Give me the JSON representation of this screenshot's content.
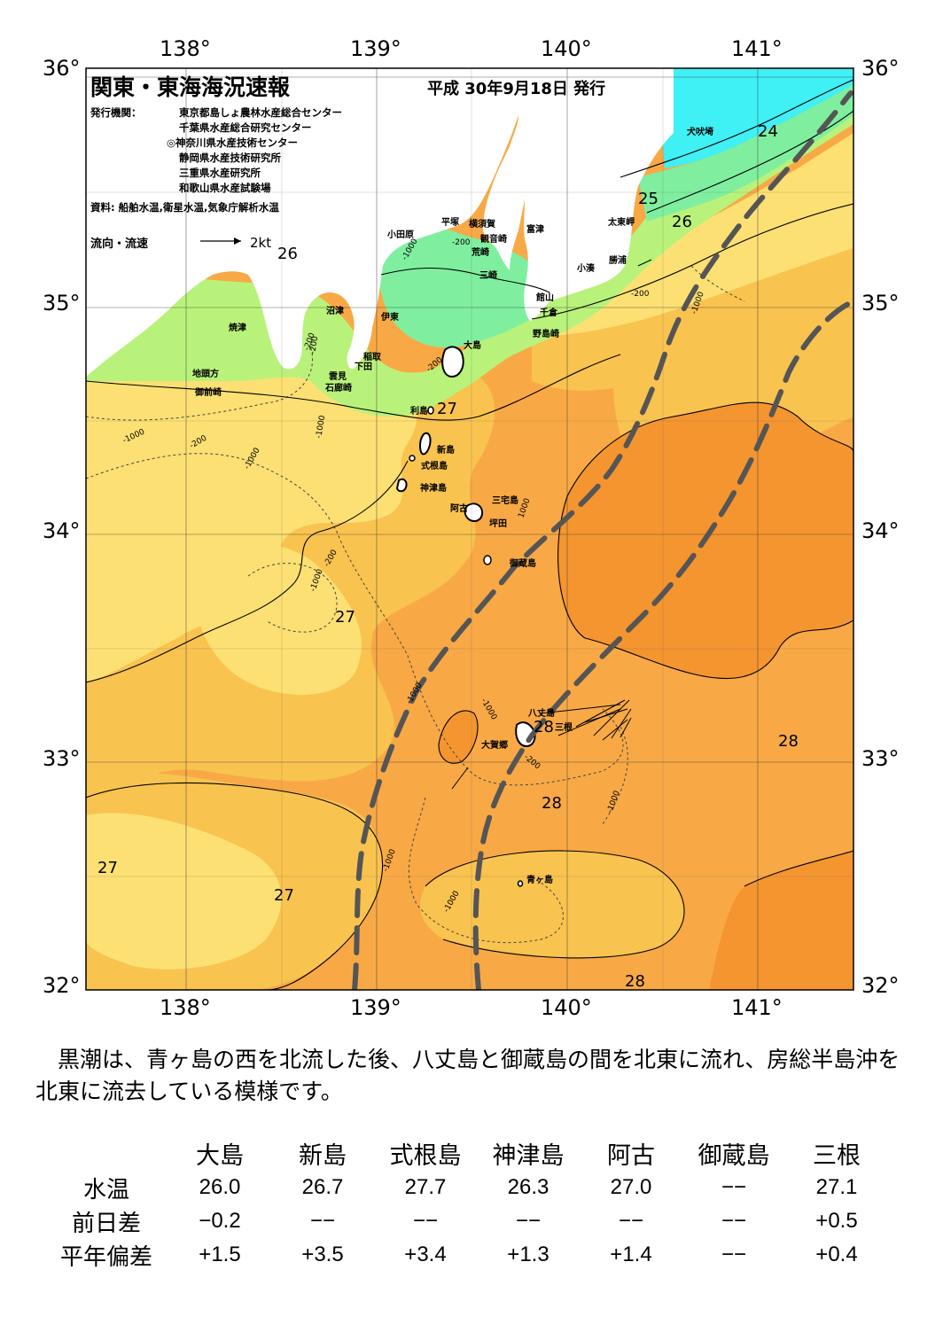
{
  "title": "関東・東海海況速報",
  "issue_date": "平成 30年9月18日 発行",
  "issuers_label": "発行機関：",
  "issuers": [
    "東京都島しょ農林水産総合センター",
    "千葉県水産総合研究センター",
    "◎神奈川県水産技術センター",
    "静岡県水産技術研究所",
    "三重県水産研究所",
    "和歌山県水産試験場"
  ],
  "sources": "資料: 船舶水温,衛星水温,気象庁解析水温",
  "flow_legend": {
    "label": "流向・流速",
    "unit": "2kt"
  },
  "axes": {
    "longitude_ticks": [
      "138°",
      "139°",
      "140°",
      "141°"
    ],
    "latitude_ticks": [
      "36°",
      "35°",
      "34°",
      "33°",
      "32°"
    ]
  },
  "isotherm_labels": [
    "26",
    "24",
    "25",
    "26",
    "27",
    "27",
    "28",
    "28",
    "28",
    "27",
    "27",
    "28"
  ],
  "depth_labels": [
    "-200",
    "-1000",
    "-200",
    "-1000",
    "-1000",
    "-200",
    "-1000",
    "1000",
    "-200",
    "-1000",
    "-1000",
    "-1000",
    "-1000",
    "-200",
    "-1000",
    "-1000",
    "-200",
    "-200",
    "-1000",
    "-200"
  ],
  "place_names": {
    "inubozaki": "犬吠埼",
    "taitomisaki": "太東岬",
    "katsuura": "勝浦",
    "kominato": "小湊",
    "odawara": "小田原",
    "hiratsuka": "平塚",
    "yokosuka": "横須賀",
    "kannonzaki": "観音崎",
    "futtsu": "富津",
    "arasaki": "荒崎",
    "misaki": "三崎",
    "tateyama": "館山",
    "chikura": "千倉",
    "nojimazaki": "野島崎",
    "numazu": "沼津",
    "yaizu": "焼津",
    "ito": "伊東",
    "inatori": "稲取",
    "shimoda": "下田",
    "kumomi": "雲見",
    "irozaki": "石廊崎",
    "jitogata": "地頭方",
    "omaezaki": "御前崎",
    "oshima": "大島",
    "toshima": "利島",
    "niijima": "新島",
    "shikinejima": "式根島",
    "kozushima": "神津島",
    "miyakejima": "三宅島",
    "ako": "阿古",
    "tsubota": "坪田",
    "mikurajima": "御蔵島",
    "hachijojima": "八丈島",
    "mitsune": "三根",
    "okago": "大賀郷",
    "aogashima": "青ヶ島"
  },
  "kuroshio_axis": "Kuroshio current boundaries (dashed grey)",
  "colors": {
    "temp_28plus": "#f59530",
    "temp_27_28": "#f8a945",
    "temp_26_27": "#f9c34f",
    "temp_25_26": "#fde073",
    "temp_24_25": "#b9f27a",
    "temp_23_24": "#7fef9f",
    "temp_below_23": "#3ff0f5",
    "land": "#ffffff",
    "kuroshio_line": "#555555"
  },
  "summary": "黒潮は、青ヶ島の西を北流した後、八丈島と御蔵島の間を北東に流れ、房総半島沖を北東に流去している模様です。",
  "table": {
    "columns": [
      "大島",
      "新島",
      "式根島",
      "神津島",
      "阿古",
      "御蔵島",
      "三根"
    ],
    "rows": [
      {
        "label": "水温",
        "values": [
          "26.0",
          "26.7",
          "27.7",
          "26.3",
          "27.0",
          "−−",
          "27.1"
        ]
      },
      {
        "label": "前日差",
        "values": [
          "−0.2",
          "−−",
          "−−",
          "−−",
          "−−",
          "−−",
          "+0.5"
        ]
      },
      {
        "label": "平年偏差",
        "values": [
          "+1.5",
          "+3.5",
          "+3.4",
          "+1.3",
          "+1.4",
          "−−",
          "+0.4"
        ]
      }
    ]
  }
}
